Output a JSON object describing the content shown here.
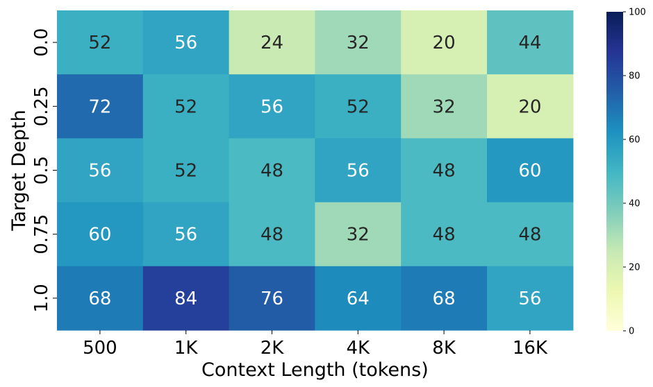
{
  "chart_data": {
    "type": "heatmap",
    "x_categories": [
      "500",
      "1K",
      "2K",
      "4K",
      "8K",
      "16K"
    ],
    "y_categories": [
      "0.0",
      "0.25",
      "0.5",
      "0.75",
      "1.0"
    ],
    "values": [
      [
        52,
        56,
        24,
        32,
        20,
        44
      ],
      [
        72,
        52,
        56,
        52,
        32,
        20
      ],
      [
        56,
        52,
        48,
        56,
        48,
        60
      ],
      [
        60,
        56,
        48,
        32,
        48,
        48
      ],
      [
        68,
        84,
        76,
        64,
        68,
        56
      ]
    ],
    "xlabel": "Context Length (tokens)",
    "ylabel": "Target Depth",
    "colorbar": {
      "min": 0,
      "max": 100,
      "ticks": [
        0,
        20,
        40,
        60,
        80,
        100
      ]
    },
    "colormap": "YlGnBu",
    "colormap_stops": [
      "#ffffd9",
      "#edf8b1",
      "#c7e9b4",
      "#7fcdbb",
      "#41b6c4",
      "#1d91c0",
      "#225ea8",
      "#253494",
      "#081d58"
    ]
  }
}
